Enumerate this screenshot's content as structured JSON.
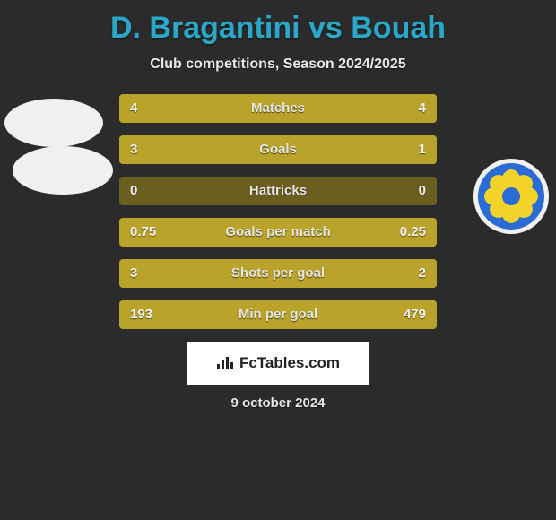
{
  "title": "D. Bragantini vs Bouah",
  "subtitle": "Club competitions, Season 2024/2025",
  "accent_color": "#2aa8c9",
  "bar_base_color": "#6b5f1f",
  "bar_fill_color": "#b9a32a",
  "background_color": "#2b2b2b",
  "text_color": "#e8e8e8",
  "rows": [
    {
      "label": "Matches",
      "left": "4",
      "right": "4",
      "left_pct": 50,
      "right_pct": 50
    },
    {
      "label": "Goals",
      "left": "3",
      "right": "1",
      "left_pct": 75,
      "right_pct": 25
    },
    {
      "label": "Hattricks",
      "left": "0",
      "right": "0",
      "left_pct": 0,
      "right_pct": 0
    },
    {
      "label": "Goals per match",
      "left": "0.75",
      "right": "0.25",
      "left_pct": 75,
      "right_pct": 25
    },
    {
      "label": "Shots per goal",
      "left": "3",
      "right": "2",
      "left_pct": 40,
      "right_pct": 60
    },
    {
      "label": "Min per goal",
      "left": "193",
      "right": "479",
      "left_pct": 71,
      "right_pct": 29
    }
  ],
  "brand": "FcTables.com",
  "date": "9 october 2024",
  "right_badge": {
    "outer_color": "#2a6bd4",
    "petal_color": "#f3d22a"
  }
}
